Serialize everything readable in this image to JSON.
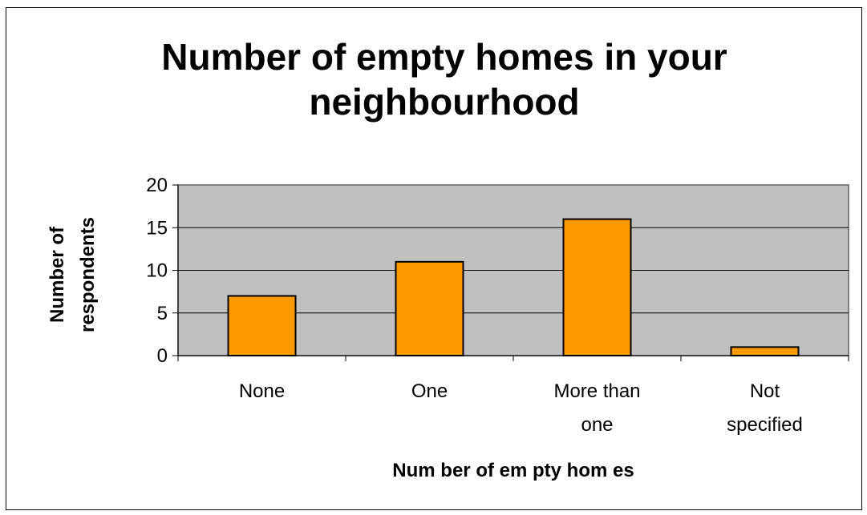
{
  "chart_data": {
    "type": "bar",
    "title_lines": [
      "Number of empty homes in your",
      "neighbourhood"
    ],
    "categories": [
      [
        "None"
      ],
      [
        "One"
      ],
      [
        "More than",
        "one"
      ],
      [
        "Not",
        "specified"
      ]
    ],
    "values": [
      7,
      11,
      16,
      1
    ],
    "xlabel": "Num ber of em pty hom es",
    "ylabel_lines": [
      "Number of",
      "respondents"
    ],
    "ylim": [
      0,
      20
    ],
    "yticks": [
      0,
      5,
      10,
      15,
      20
    ],
    "grid": true,
    "legend": "none",
    "colors": {
      "bar_fill": "#FF9900",
      "bar_stroke": "#000000",
      "plot_background": "#C0C0C0",
      "plot_border": "#808080",
      "gridline": "#000000"
    }
  }
}
